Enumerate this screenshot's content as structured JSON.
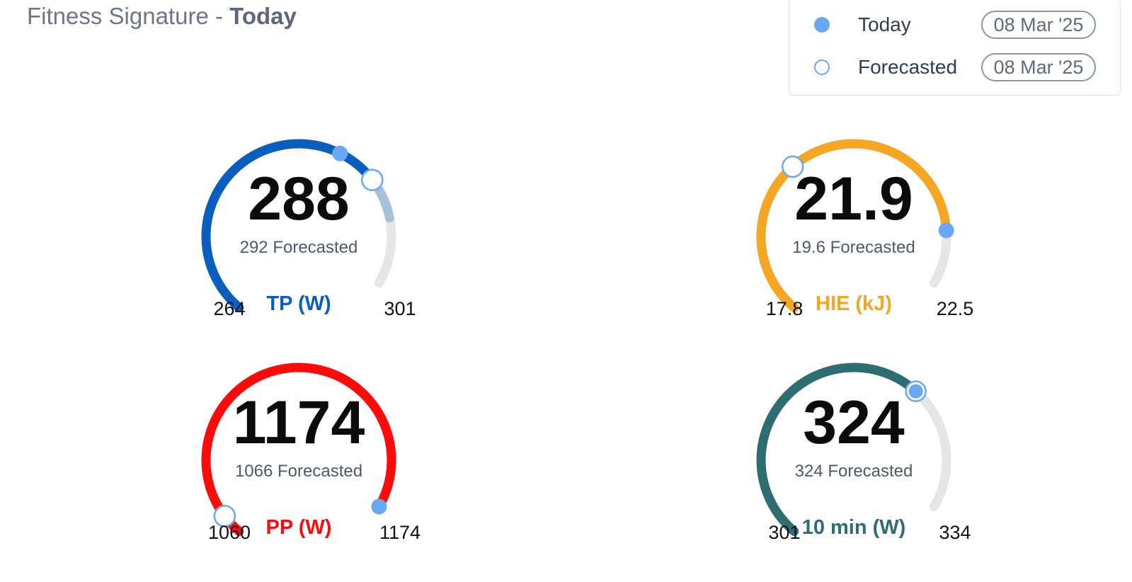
{
  "header": {
    "title_prefix": "Fitness Signature - ",
    "title_bold": "Today"
  },
  "legend": {
    "items": [
      {
        "label": "Today",
        "date": "08 Mar '25",
        "marker": "filled"
      },
      {
        "label": "Forecasted",
        "date": "08 Mar '25",
        "marker": "hollow"
      }
    ]
  },
  "colors": {
    "today_marker": "#69a8f3",
    "track": "#e6e6e6",
    "text_muted": "#4c5a6c"
  },
  "gauges": [
    {
      "id": "tp",
      "value": "288",
      "forecast_text": "292 Forecasted",
      "label": "TP (W)",
      "min": "264",
      "max": "301",
      "color": "#0a5fbe",
      "extra_color": "#a9c0dc",
      "fill_fraction": 0.74,
      "extra_fraction": 0.84,
      "today_fraction": 0.64,
      "forecast_fraction": 0.74
    },
    {
      "id": "hie",
      "value": "21.9",
      "forecast_text": "19.6 Forecasted",
      "label": "HIE (kJ)",
      "min": "17.8",
      "max": "22.5",
      "color": "#f5a623",
      "extra_color": "",
      "fill_fraction": 0.87,
      "extra_fraction": 0,
      "today_fraction": 0.87,
      "forecast_fraction": 0.38
    },
    {
      "id": "pp",
      "value": "1174",
      "forecast_text": "1066 Forecasted",
      "label": "PP (W)",
      "min": "1060",
      "max": "1174",
      "color": "#ff0a0a",
      "extra_color": "",
      "fill_fraction": 1.0,
      "extra_fraction": 0,
      "today_fraction": 1.0,
      "forecast_fraction": 0.05
    },
    {
      "id": "min10",
      "value": "324",
      "forecast_text": "324 Forecasted",
      "label": "10 min (W)",
      "min": "301",
      "max": "334",
      "color": "#2e6e72",
      "extra_color": "",
      "fill_fraction": 0.7,
      "extra_fraction": 0,
      "today_fraction": 0.7,
      "forecast_fraction": 0.7
    }
  ]
}
